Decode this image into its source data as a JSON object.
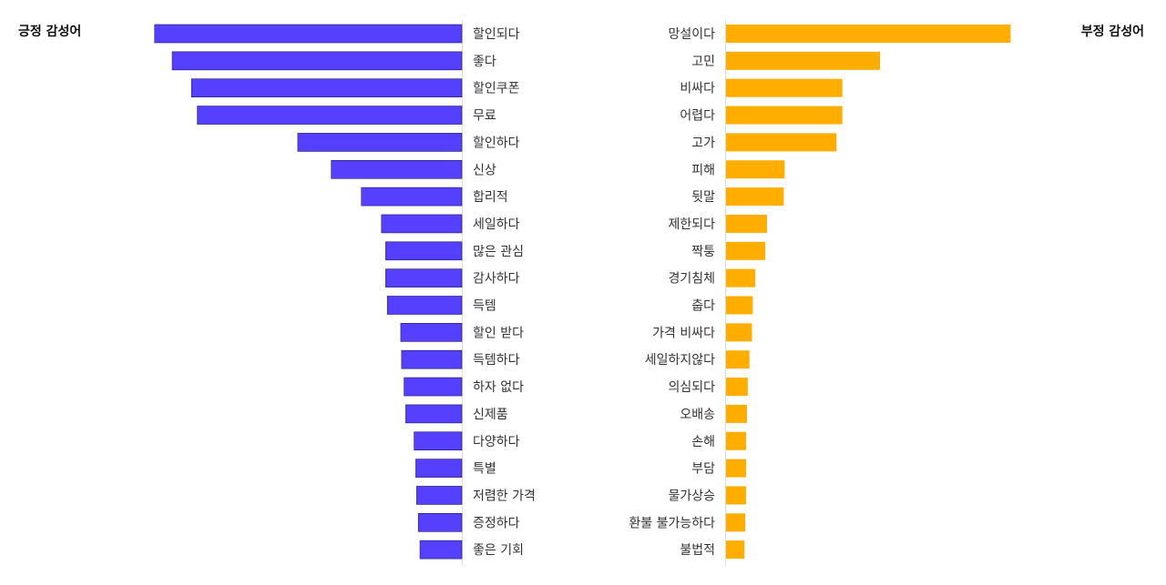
{
  "chart_data": [
    {
      "type": "bar",
      "orientation": "horizontal",
      "direction": "leftward",
      "title": "긍정 감성어",
      "color": "#5540FF",
      "categories": [
        "할인되다",
        "좋다",
        "할인쿠폰",
        "무료",
        "할인하다",
        "신상",
        "합리적",
        "세일하다",
        "많은 관심",
        "감사하다",
        "득템",
        "할인 받다",
        "득템하다",
        "하자 없다",
        "신제품",
        "다양하다",
        "특별",
        "저렴한 가격",
        "증정하다",
        "좋은 기회"
      ],
      "values": [
        367,
        346,
        323,
        316,
        196,
        156,
        120,
        96,
        91,
        91,
        89,
        73,
        72,
        69,
        67,
        57,
        55,
        54,
        52,
        50
      ],
      "xlim": [
        0,
        370
      ],
      "grid": false
    },
    {
      "type": "bar",
      "orientation": "horizontal",
      "direction": "rightward",
      "title": "부정 감성어",
      "color": "#FFAE00",
      "categories": [
        "망설이다",
        "고민",
        "비싸다",
        "어렵다",
        "고가",
        "피해",
        "뒷말",
        "제한되다",
        "짝퉁",
        "경기침체",
        "춥다",
        "가격 비싸다",
        "세일하지않다",
        "의심되다",
        "오배송",
        "손해",
        "부담",
        "물가상승",
        "환불 불가능하다",
        "불법적"
      ],
      "values": [
        340,
        184,
        139,
        139,
        132,
        70,
        69,
        49,
        47,
        35,
        32,
        31,
        28,
        26,
        25,
        24,
        24,
        24,
        23,
        22
      ],
      "xlim": [
        0,
        370
      ],
      "grid": false
    }
  ]
}
